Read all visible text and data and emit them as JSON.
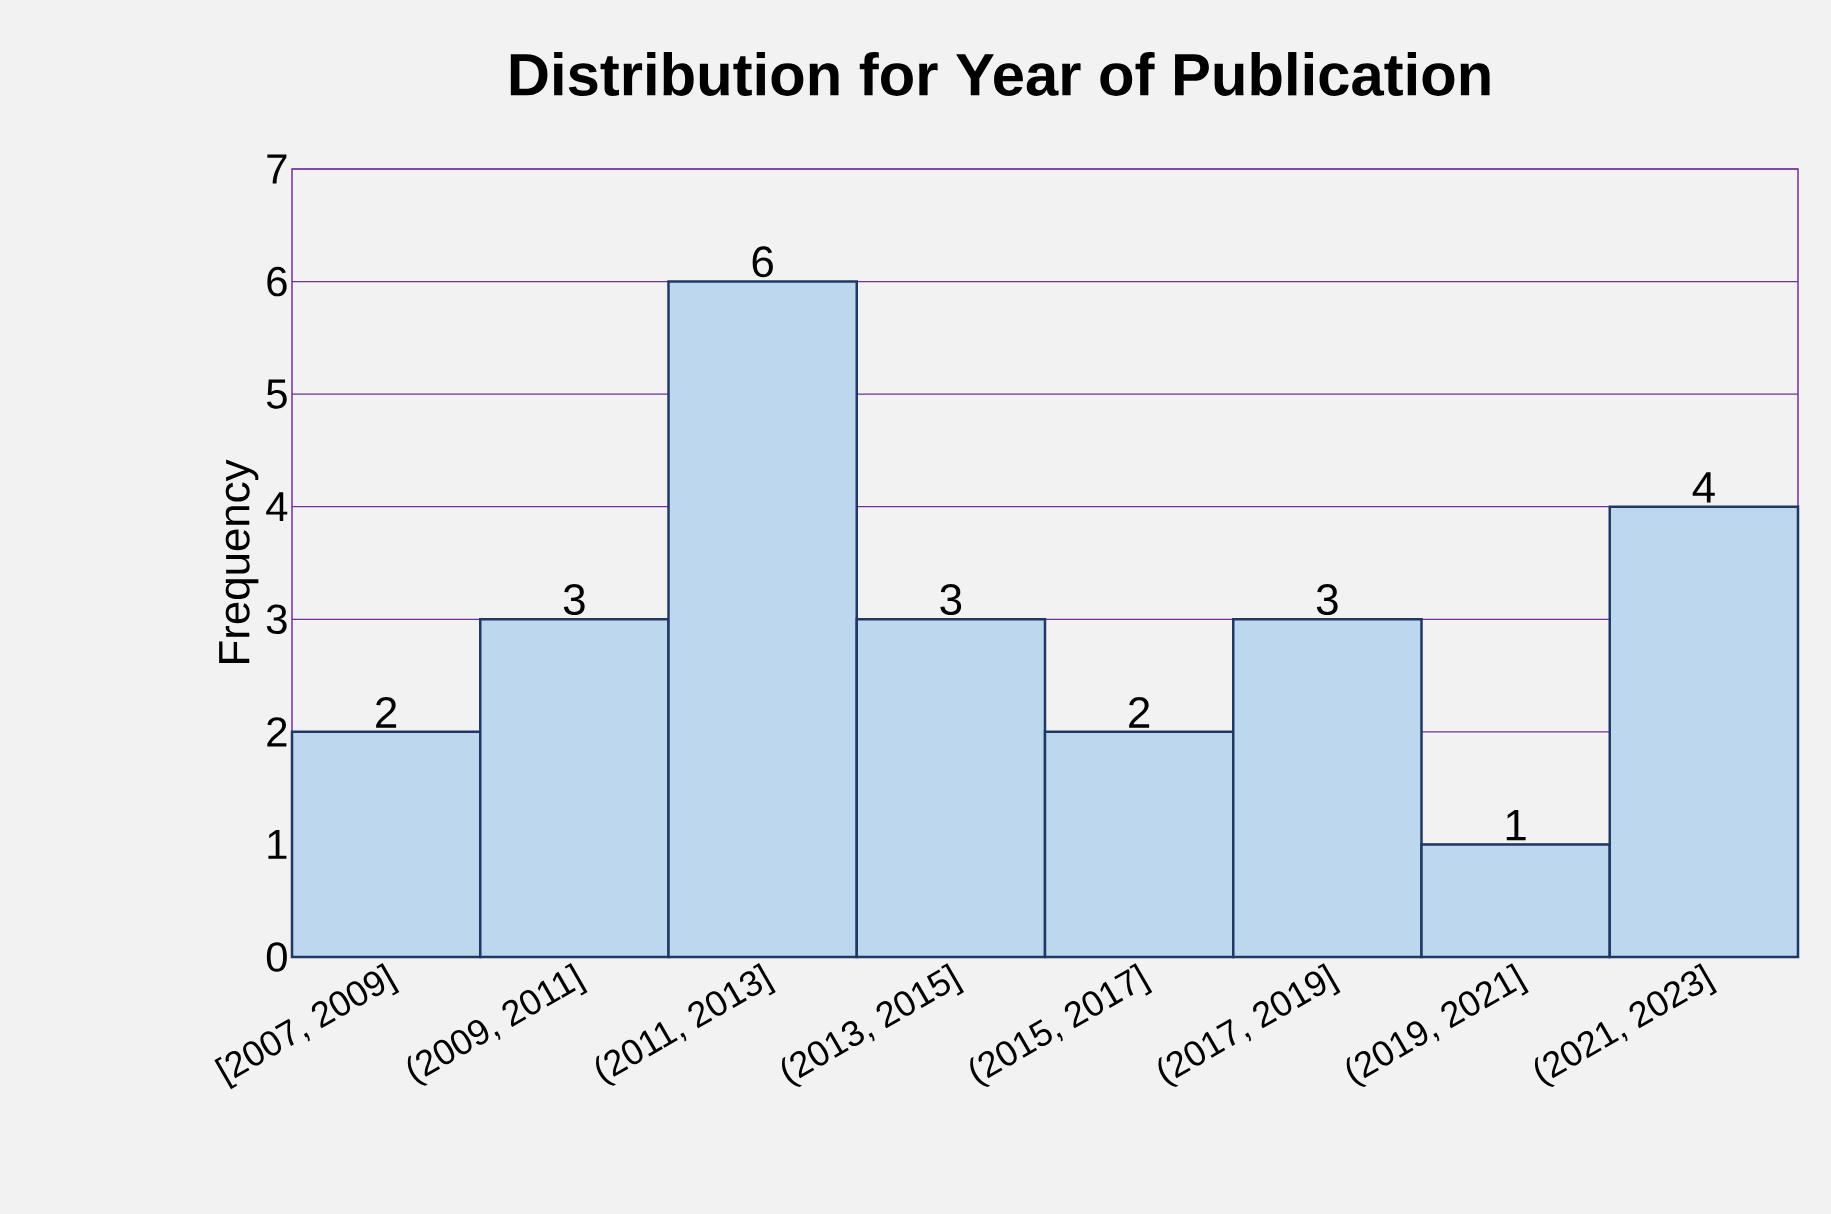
{
  "chart_data": {
    "type": "bar",
    "title": "Distribution for Year of Publication",
    "ylabel": "Frequency",
    "categories": [
      "[2007, 2009]",
      "(2009, 2011]",
      "(2011, 2013]",
      "(2013, 2015]",
      "(2015, 2017]",
      "(2017, 2019]",
      "(2019, 2021]",
      "(2021, 2023]"
    ],
    "values": [
      2,
      3,
      6,
      3,
      2,
      3,
      1,
      4
    ],
    "color": "#bdd7ee",
    "ylim": [
      0,
      7
    ],
    "yticks": [
      0,
      1,
      2,
      3,
      4,
      5,
      6,
      7
    ],
    "grid": "y",
    "data_labels": true
  }
}
